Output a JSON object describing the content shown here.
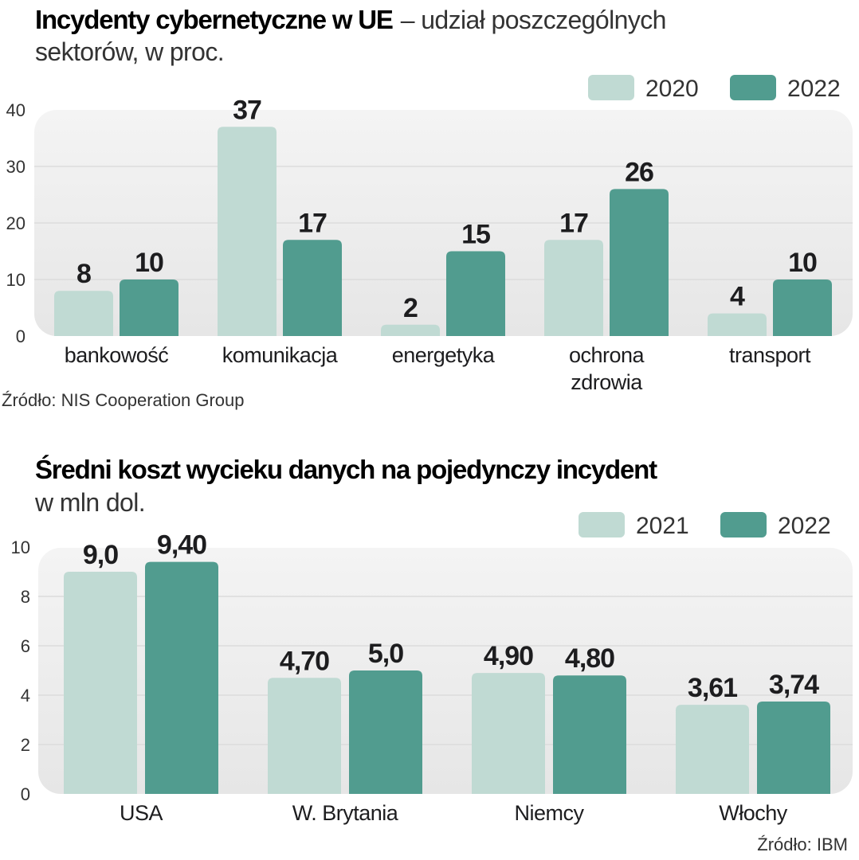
{
  "colors": {
    "light": "#c0dad3",
    "dark": "#519c8f",
    "panel_top": "#f4f4f4",
    "panel_bottom": "#e6e6e6",
    "grid": "#dcdcdc"
  },
  "chart_data": [
    {
      "type": "bar",
      "title": "Incydenty cybernetyczne w UE",
      "subtitle_line1": "– udział poszczególnych",
      "subtitle_line2": "sektorów, w proc.",
      "categories": [
        "bankowość",
        "komunikacja",
        "energetyka",
        "ochrona zdrowia",
        "transport"
      ],
      "series": [
        {
          "name": "2020",
          "values": [
            8,
            37,
            2,
            17,
            4
          ]
        },
        {
          "name": "2022",
          "values": [
            10,
            17,
            15,
            26,
            10
          ]
        }
      ],
      "value_labels": [
        [
          "8",
          "37",
          "2",
          "17",
          "4"
        ],
        [
          "10",
          "17",
          "15",
          "26",
          "10"
        ]
      ],
      "yticks": [
        "0",
        "10",
        "20",
        "30",
        "40"
      ],
      "ylim": [
        0,
        40
      ],
      "grid": true,
      "legend": "top-right",
      "source": "Źródło: NIS Cooperation Group"
    },
    {
      "type": "bar",
      "title": "Średni koszt wycieku danych na pojedynczy incydent",
      "subtitle_line1": "w mln dol.",
      "categories": [
        "USA",
        "W. Brytania",
        "Niemcy",
        "Włochy"
      ],
      "series": [
        {
          "name": "2021",
          "values": [
            9.0,
            4.7,
            4.9,
            3.61
          ]
        },
        {
          "name": "2022",
          "values": [
            9.4,
            5.0,
            4.8,
            3.74
          ]
        }
      ],
      "value_labels": [
        [
          "9,0",
          "4,70",
          "4,90",
          "3,61"
        ],
        [
          "9,40",
          "5,0",
          "4,80",
          "3,74"
        ]
      ],
      "yticks": [
        "0",
        "2",
        "4",
        "6",
        "8",
        "10"
      ],
      "ylim": [
        0,
        10
      ],
      "grid": true,
      "legend": "top-right",
      "source": "Źródło: IBM"
    }
  ]
}
